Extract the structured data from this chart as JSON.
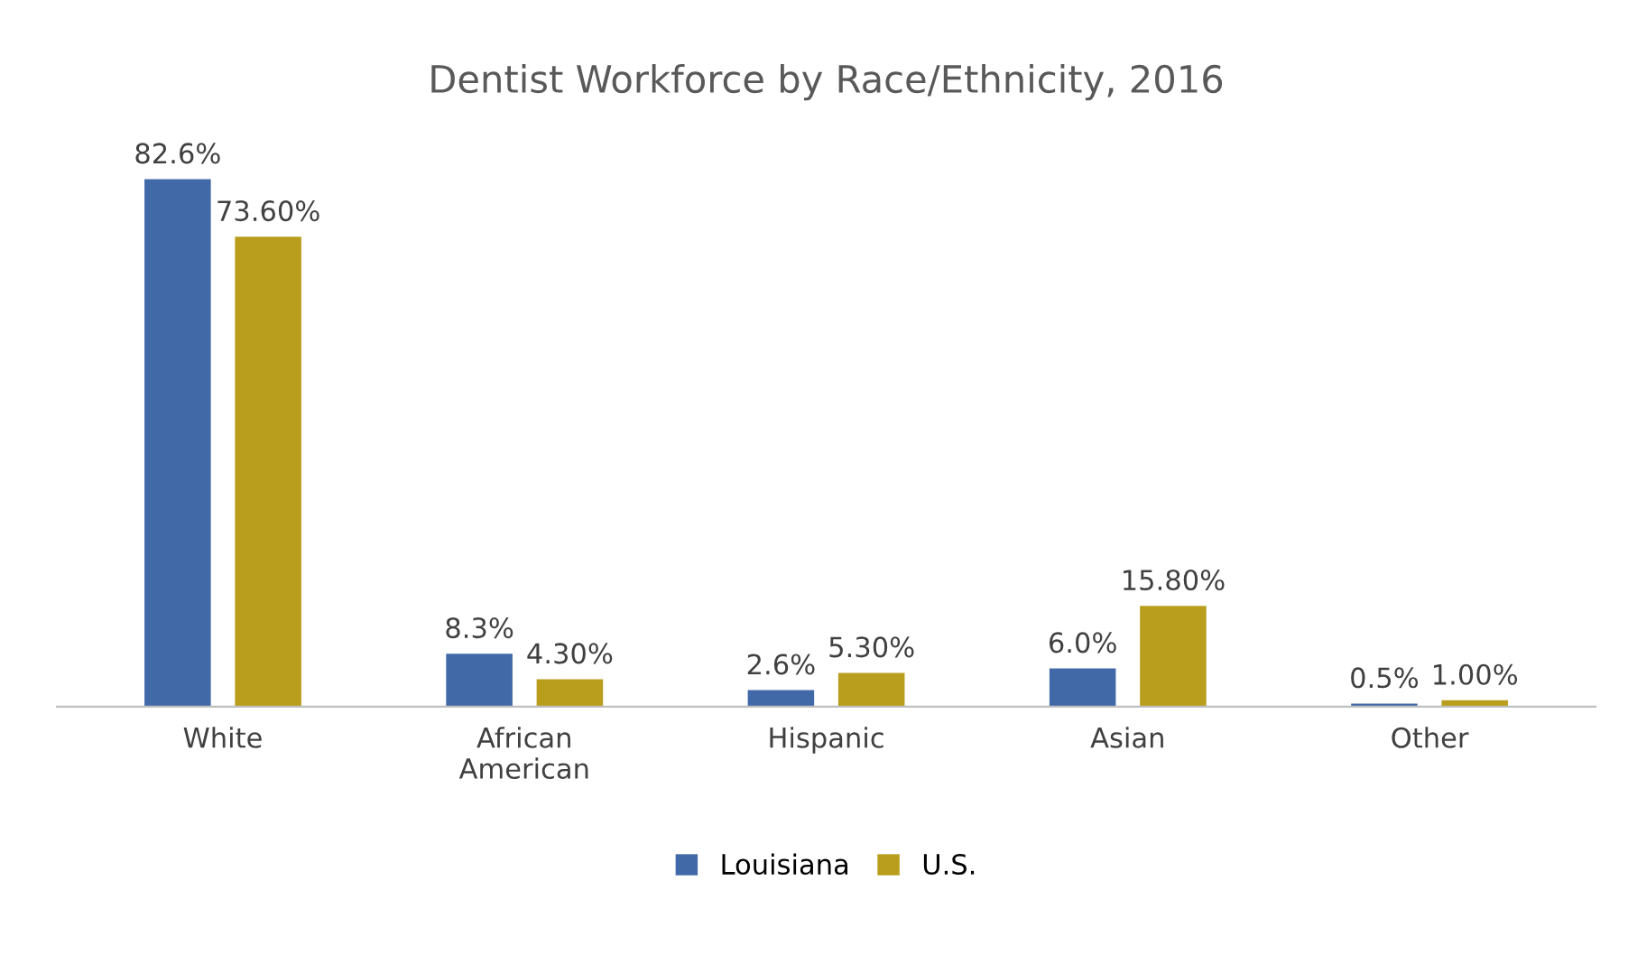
{
  "chart_data": {
    "type": "bar",
    "title": "Dentist Workforce by Race/Ethnicity, 2016",
    "categories": [
      "White",
      "African\nAmerican",
      "Hispanic",
      "Asian",
      "Other"
    ],
    "series": [
      {
        "name": "Louisiana",
        "color": "#4169a8",
        "values": [
          82.6,
          8.3,
          2.6,
          6.0,
          0.5
        ],
        "value_labels": [
          "82.6%",
          "8.3%",
          "2.6%",
          "6.0%",
          "0.5%"
        ]
      },
      {
        "name": "U.S.",
        "color": "#b89e1c",
        "values": [
          73.6,
          4.3,
          5.3,
          15.8,
          1.0
        ],
        "value_labels": [
          "73.60%",
          "4.30%",
          "5.30%",
          "15.80%",
          "1.00%"
        ]
      }
    ],
    "grid": false,
    "legend": "bottom"
  }
}
